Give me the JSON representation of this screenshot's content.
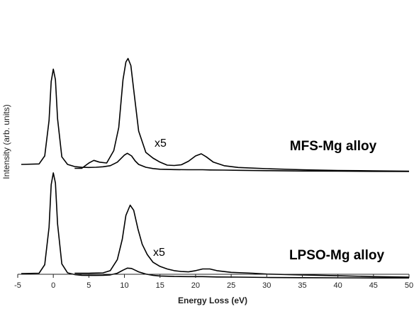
{
  "chart_data": {
    "type": "line",
    "xlabel": "Energy Loss (eV)",
    "ylabel": "Intensity (arb. units)",
    "xlim": [
      -5,
      50
    ],
    "x_ticks": [
      -5,
      0,
      5,
      10,
      15,
      20,
      25,
      30,
      35,
      40,
      45,
      50
    ],
    "grid": false,
    "legend": "none",
    "panels": [
      {
        "name": "MFS-Mg alloy",
        "scale_label": "x5",
        "baseline": 0.42,
        "series": [
          {
            "name": "",
            "x": [
              -4.5,
              -2,
              -1.2,
              -0.6,
              -0.3,
              0,
              0.3,
              0.6,
              1.2,
              2,
              3,
              4,
              5,
              6,
              7,
              8,
              9,
              9.5,
              10,
              10.4,
              11,
              11.5,
              12,
              13,
              14,
              15,
              17,
              19,
              20,
              21,
              22,
              24,
              26,
              30,
              35,
              40,
              45,
              50
            ],
            "y": [
              0.42,
              0.45,
              0.9,
              2.9,
              5.1,
              5.8,
              5.2,
              3.0,
              0.85,
              0.42,
              0.3,
              0.26,
              0.25,
              0.26,
              0.29,
              0.35,
              0.55,
              0.75,
              0.95,
              1.05,
              0.9,
              0.62,
              0.42,
              0.26,
              0.19,
              0.15,
              0.13,
              0.12,
              0.12,
              0.12,
              0.11,
              0.1,
              0.09,
              0.07,
              0.05,
              0.04,
              0.03,
              0.02
            ]
          },
          {
            "name": "",
            "scale": "x5",
            "x": [
              3,
              4,
              5,
              5.7,
              6.5,
              7.5,
              8.5,
              9.2,
              9.8,
              10.2,
              10.5,
              10.9,
              11.4,
              12,
              13,
              14,
              15,
              16,
              17,
              18,
              19,
              20,
              20.8,
              21.5,
              22.5,
              24,
              26,
              30,
              35,
              40,
              45,
              50
            ],
            "y": [
              0.2,
              0.2,
              0.5,
              0.65,
              0.55,
              0.5,
              1.2,
              2.5,
              5.2,
              6.2,
              6.4,
              6.0,
              4.3,
              2.3,
              1.1,
              0.78,
              0.55,
              0.38,
              0.36,
              0.4,
              0.6,
              0.9,
              1.02,
              0.85,
              0.55,
              0.35,
              0.25,
              0.18,
              0.12,
              0.08,
              0.06,
              0.04
            ]
          }
        ]
      },
      {
        "name": "LPSO-Mg alloy",
        "scale_label": "x5",
        "baseline": 0.28,
        "series": [
          {
            "name": "",
            "x": [
              -4.5,
              -2,
              -1.2,
              -0.6,
              -0.3,
              0,
              0.3,
              0.6,
              1.2,
              2,
              3,
              4,
              5,
              6,
              7,
              8,
              9,
              9.8,
              10.4,
              11,
              11.5,
              12,
              13,
              14,
              15,
              17,
              19,
              21,
              23,
              26,
              30,
              35,
              40,
              45,
              50
            ],
            "y": [
              0.28,
              0.3,
              0.8,
              3.0,
              5.5,
              6.2,
              5.6,
              3.2,
              0.85,
              0.32,
              0.22,
              0.18,
              0.17,
              0.17,
              0.18,
              0.2,
              0.3,
              0.48,
              0.6,
              0.58,
              0.48,
              0.38,
              0.25,
              0.18,
              0.14,
              0.11,
              0.1,
              0.1,
              0.08,
              0.07,
              0.05,
              0.04,
              0.03,
              0.02,
              0.02
            ]
          },
          {
            "name": "",
            "scale": "x5",
            "x": [
              3,
              5,
              7,
              8,
              9,
              9.7,
              10.2,
              10.8,
              11.3,
              11.9,
              12.5,
              13.2,
              14,
              15,
              16,
              17,
              18,
              19,
              20,
              21,
              22,
              23,
              25,
              28,
              30,
              35,
              40,
              45,
              50
            ],
            "y": [
              0.3,
              0.3,
              0.32,
              0.45,
              1.1,
              2.3,
              3.7,
              4.3,
              4.0,
              2.9,
              2.0,
              1.4,
              0.95,
              0.7,
              0.55,
              0.45,
              0.4,
              0.38,
              0.45,
              0.55,
              0.55,
              0.45,
              0.35,
              0.3,
              0.25,
              0.2,
              0.15,
              0.1,
              0.07
            ]
          }
        ]
      }
    ]
  }
}
